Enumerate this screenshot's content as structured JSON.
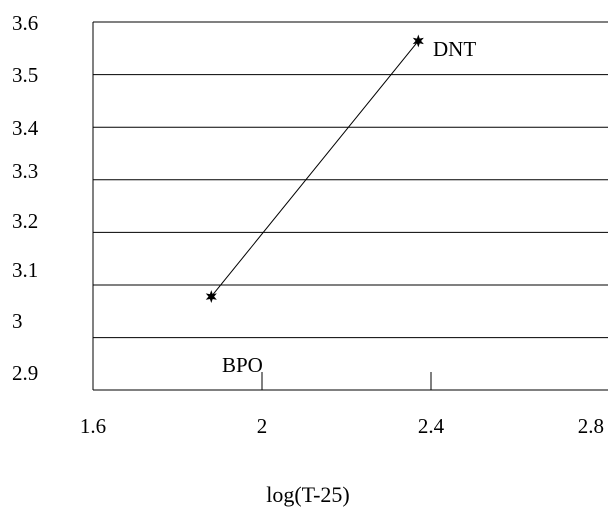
{
  "chart_data": {
    "type": "line",
    "title": "",
    "xlabel": "log(T-25)",
    "ylabel": "",
    "xlim": [
      1.6,
      2.8
    ],
    "xticks": [
      "1.6",
      "2",
      "2.4",
      "2.8"
    ],
    "yticks": [
      "2.9",
      "3",
      "3.1",
      "3.2",
      "3.3",
      "3.4",
      "3.5",
      "3.6"
    ],
    "grid": "horizontal",
    "legend": "none",
    "series": [
      {
        "points": [
          {
            "x": 1.88,
            "y": 3.02,
            "label": "BPO"
          },
          {
            "x": 2.37,
            "y": 3.56,
            "label": "DNT"
          }
        ]
      }
    ],
    "colors": {
      "line": "#000000",
      "grid": "#000000",
      "background": "#ffffff"
    }
  }
}
